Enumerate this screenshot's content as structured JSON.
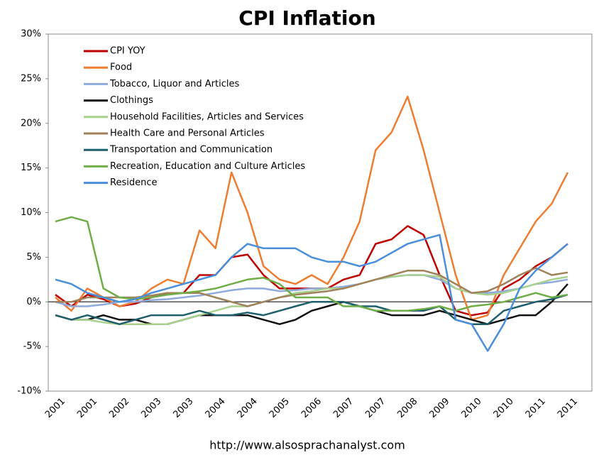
{
  "chart_data": {
    "type": "line",
    "title": "CPI Inflation",
    "footer": "http://www.alsosprachanalyst.com",
    "categories": [
      "2001",
      null,
      "2001",
      null,
      "2002",
      null,
      "2003",
      null,
      "2003",
      null,
      "2004",
      null,
      "2004",
      null,
      "2005",
      null,
      "2006",
      null,
      "2007",
      null,
      "2007",
      null,
      "2008",
      null,
      "2009",
      null,
      "2010",
      null,
      "2010",
      null,
      "2011",
      null,
      "2011"
    ],
    "ylim": [
      -10,
      30
    ],
    "yticks": [
      {
        "value": -10,
        "label": "-10%"
      },
      {
        "value": -5,
        "label": "-5%"
      },
      {
        "value": 0,
        "label": "0%"
      },
      {
        "value": 5,
        "label": "5%"
      },
      {
        "value": 10,
        "label": "10%"
      },
      {
        "value": 15,
        "label": "15%"
      },
      {
        "value": 20,
        "label": "20%"
      },
      {
        "value": 25,
        "label": "25%"
      },
      {
        "value": 30,
        "label": "30%"
      }
    ],
    "legend": "upper left",
    "series": [
      {
        "name": "CPI YOY",
        "color": "#c00000",
        "values": [
          0.8,
          -0.5,
          0.8,
          0.3,
          -0.5,
          -0.2,
          0.5,
          1,
          1,
          3,
          3,
          5,
          5.3,
          3,
          1.5,
          1.5,
          1.5,
          1.5,
          2.5,
          3,
          6.5,
          7,
          8.5,
          7.5,
          3,
          -1,
          -1.5,
          -1.2,
          1.5,
          2.5,
          4,
          5,
          6.5
        ]
      },
      {
        "name": "Food",
        "color": "#ed7d31",
        "values": [
          0.5,
          -1,
          1.5,
          0.5,
          -0.5,
          0,
          1.5,
          2.5,
          2,
          8,
          6,
          14.5,
          10,
          4,
          2.5,
          2,
          3,
          2,
          5,
          9,
          17,
          19,
          23,
          17,
          10,
          3,
          -2,
          -1.5,
          3,
          6,
          9,
          11,
          14.5
        ]
      },
      {
        "name": "Tobacco, Liquor and Articles",
        "color": "#8faadc",
        "values": [
          0,
          -0.5,
          -0.5,
          -0.3,
          0,
          0,
          0.2,
          0.3,
          0.5,
          0.7,
          1,
          1.3,
          1.5,
          1.5,
          1.2,
          1.3,
          1.5,
          1.5,
          1.7,
          2,
          2.5,
          2.8,
          3,
          3,
          2.5,
          1.5,
          1,
          1,
          1.2,
          1.5,
          2,
          2.2,
          2.5
        ]
      },
      {
        "name": "Clothings",
        "color": "#111111",
        "values": [
          -1.5,
          -2,
          -2,
          -1.5,
          -2,
          -2,
          -2.5,
          -2.5,
          -2,
          -1.5,
          -1.5,
          -1.5,
          -1.5,
          -2,
          -2.5,
          -2,
          -1,
          -0.5,
          0,
          -0.5,
          -1,
          -1.5,
          -1.5,
          -1.5,
          -1,
          -1.5,
          -2,
          -2.5,
          -2,
          -1.5,
          -1.5,
          0,
          2
        ]
      },
      {
        "name": "Household Facilities, Articles and Services",
        "color": "#a9d18e",
        "values": [
          -1.5,
          -2,
          -2,
          -2.3,
          -2.5,
          -2.5,
          -2.5,
          -2.5,
          -2,
          -1.5,
          -1,
          -0.5,
          -0.5,
          0,
          0.5,
          1,
          1.2,
          1.5,
          1.5,
          2,
          2.5,
          2.8,
          3,
          3,
          2.8,
          1.5,
          1,
          0.8,
          1,
          1.5,
          2,
          2.5,
          2.8
        ]
      },
      {
        "name": "Health Care and Personal Articles",
        "color": "#a0825a",
        "values": [
          0,
          0,
          0.5,
          0.5,
          0.5,
          0.5,
          0.7,
          1,
          1,
          1,
          0.5,
          0,
          -0.5,
          0,
          0.5,
          0.8,
          1,
          1.2,
          1.5,
          2,
          2.5,
          3,
          3.5,
          3.5,
          3,
          2,
          1,
          1.2,
          2,
          3,
          3.8,
          3,
          3.3
        ]
      },
      {
        "name": "Transportation and Communication",
        "color": "#1f5f6b",
        "values": [
          -1.5,
          -2,
          -1.5,
          -2,
          -2.5,
          -2,
          -1.5,
          -1.5,
          -1.5,
          -1,
          -1.5,
          -1.5,
          -1.2,
          -1.5,
          -1,
          -0.5,
          0,
          0,
          0,
          -0.5,
          -0.5,
          -1,
          -1,
          -1,
          -0.5,
          -2,
          -2.5,
          -2.5,
          -1,
          -0.5,
          0,
          0.3,
          0.8
        ]
      },
      {
        "name": "Recreation, Education and Culture Articles",
        "color": "#70ad47",
        "values": [
          9,
          9.5,
          9,
          1.5,
          0.5,
          0.3,
          0.5,
          0.8,
          1,
          1.2,
          1.5,
          2,
          2.5,
          2.7,
          2,
          0.5,
          0.5,
          0.5,
          -0.5,
          -0.5,
          -1,
          -1,
          -1,
          -0.8,
          -0.5,
          -1,
          -0.5,
          -0.3,
          0,
          0.5,
          1,
          0.5,
          0.8
        ]
      },
      {
        "name": "Residence",
        "color": "#4a8fdc",
        "values": [
          2.5,
          2,
          1,
          0.5,
          0,
          0.3,
          1,
          1.5,
          2,
          2.5,
          3,
          5,
          6.5,
          6,
          6,
          6,
          5,
          4.5,
          4.5,
          4,
          4.5,
          5.5,
          6.5,
          7,
          7.5,
          -2,
          -2.5,
          -5.5,
          -2.5,
          1.5,
          3.5,
          5,
          6.5
        ]
      }
    ]
  }
}
